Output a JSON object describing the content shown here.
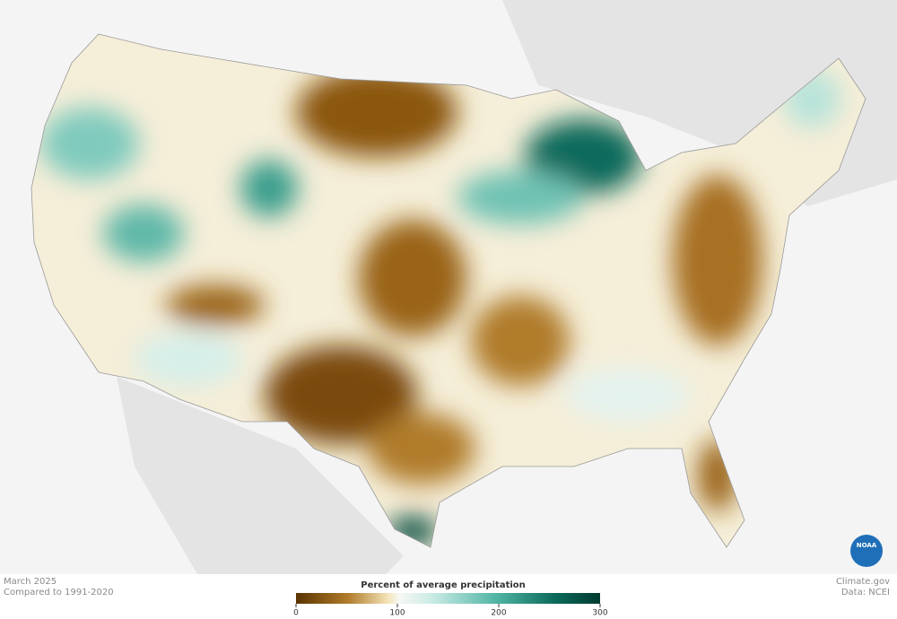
{
  "footer": {
    "date": "March 2025",
    "baseline": "Compared to 1991-2020",
    "credit": "Climate.gov",
    "source": "Data: NCEI"
  },
  "legend": {
    "title": "Percent of average precipitation",
    "range": [
      0,
      300
    ],
    "ticks": [
      0,
      100,
      200,
      300
    ]
  },
  "logo": "NOAA"
}
